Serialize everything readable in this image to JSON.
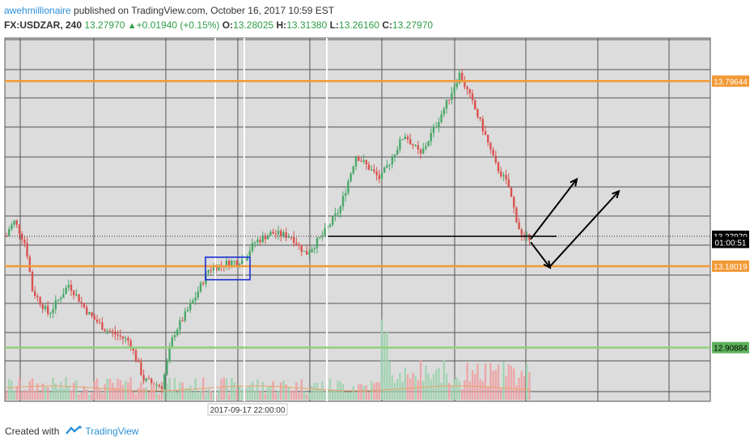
{
  "header": {
    "author": "awehmillionaire",
    "published": " published on TradingView.com, October 16, 2017 10:59 EST"
  },
  "ticker": {
    "symbol": "FX:USDZAR, 240",
    "last": "13.27970",
    "change": "+0.01940 (+0.15%)",
    "o_label": "O:",
    "o": "13.28025",
    "h_label": "H:",
    "h": "13.31380",
    "l_label": "L:",
    "l": "13.26160",
    "c_label": "C:",
    "c": "13.27970"
  },
  "footer": {
    "created": "Created with",
    "brand": "TradingView"
  },
  "chart_data": {
    "type": "candlestick",
    "yaxis_labels": [
      {
        "value": 13.79644,
        "text": "13.79644",
        "bg": "#f29935",
        "fg": "#ffffff"
      },
      {
        "value": 13.2797,
        "text": "13.27970",
        "bg": "#000000",
        "fg": "#ffffff"
      },
      {
        "value": 13.2592,
        "text": "01:00:51",
        "bg": "#000000",
        "fg": "#ffffff"
      },
      {
        "value": 13.18019,
        "text": "13.18019",
        "bg": "#f29935",
        "fg": "#ffffff"
      },
      {
        "value": 12.90884,
        "text": "12.90884",
        "bg": "#5db35b",
        "fg": "#000000"
      }
    ],
    "xaxis_label": "2017-09-17 22:00:00",
    "horizontal_lines": [
      {
        "value": 13.79644,
        "color": "#f29935"
      },
      {
        "value": 13.18019,
        "color": "#f29935"
      },
      {
        "value": 12.90884,
        "color": "#8fcf7c"
      }
    ],
    "ylim": [
      12.73,
      13.94
    ],
    "colors": {
      "up": "#4aa86a",
      "down": "#d9534f",
      "vol_up": "#9dd3ae",
      "vol_down": "#eda1a3",
      "grid": "#555555",
      "plot_bg": "#dcdcdc"
    }
  }
}
